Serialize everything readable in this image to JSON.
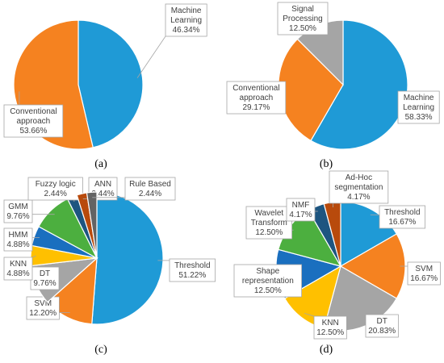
{
  "chart_data": [
    {
      "type": "pie",
      "caption": "(a)",
      "slices": [
        {
          "label": "Machine Learning",
          "label_lines": [
            "Machine",
            "Learning"
          ],
          "value": 46.34,
          "value_text": "46.34%",
          "color": "#1f9ad6"
        },
        {
          "label": "Conventional approach",
          "label_lines": [
            "Conventional",
            "approach"
          ],
          "value": 53.66,
          "value_text": "53.66%",
          "color": "#f58220"
        }
      ]
    },
    {
      "type": "pie",
      "caption": "(b)",
      "slices": [
        {
          "label": "Machine Learning",
          "label_lines": [
            "Machine",
            "Learning"
          ],
          "value": 58.33,
          "value_text": "58.33%",
          "color": "#1f9ad6"
        },
        {
          "label": "Conventional approach",
          "label_lines": [
            "Conventional",
            "approach"
          ],
          "value": 29.17,
          "value_text": "29.17%",
          "color": "#f58220"
        },
        {
          "label": "Signal Processing",
          "label_lines": [
            "Signal",
            "Processing"
          ],
          "value": 12.5,
          "value_text": "12.50%",
          "color": "#a5a5a5"
        }
      ]
    },
    {
      "type": "pie",
      "caption": "(c)",
      "slices": [
        {
          "label": "Threshold",
          "label_lines": [
            "Threshold"
          ],
          "value": 51.22,
          "value_text": "51.22%",
          "color": "#1f9ad6"
        },
        {
          "label": "SVM",
          "label_lines": [
            "SVM"
          ],
          "value": 12.2,
          "value_text": "12.20%",
          "color": "#f58220"
        },
        {
          "label": "DT",
          "label_lines": [
            "DT"
          ],
          "value": 9.76,
          "value_text": "9.76%",
          "color": "#a5a5a5"
        },
        {
          "label": "KNN",
          "label_lines": [
            "KNN"
          ],
          "value": 4.88,
          "value_text": "4.88%",
          "color": "#ffc000"
        },
        {
          "label": "HMM",
          "label_lines": [
            "HMM"
          ],
          "value": 4.88,
          "value_text": "4.88%",
          "color": "#1a6fbf"
        },
        {
          "label": "GMM",
          "label_lines": [
            "GMM"
          ],
          "value": 9.76,
          "value_text": "9.76%",
          "color": "#4caf3f"
        },
        {
          "label": "Fuzzy logic",
          "label_lines": [
            "Fuzzy logic"
          ],
          "value": 2.44,
          "value_text": "2.44%",
          "color": "#1d5580"
        },
        {
          "label": "ANN",
          "label_lines": [
            "ANN"
          ],
          "value": 2.44,
          "value_text": "2.44%",
          "color": "#b84a0c"
        },
        {
          "label": "Rule Based",
          "label_lines": [
            "Rule Based"
          ],
          "value": 2.44,
          "value_text": "2.44%",
          "color": "#636363"
        }
      ]
    },
    {
      "type": "pie",
      "caption": "(d)",
      "slices": [
        {
          "label": "Threshold",
          "label_lines": [
            "Threshold"
          ],
          "value": 16.67,
          "value_text": "16.67%",
          "color": "#1f9ad6"
        },
        {
          "label": "SVM",
          "label_lines": [
            "SVM"
          ],
          "value": 16.67,
          "value_text": "16.67%",
          "color": "#f58220"
        },
        {
          "label": "DT",
          "label_lines": [
            "DT"
          ],
          "value": 20.83,
          "value_text": "20.83%",
          "color": "#a5a5a5"
        },
        {
          "label": "KNN",
          "label_lines": [
            "KNN"
          ],
          "value": 12.5,
          "value_text": "12.50%",
          "color": "#ffc000"
        },
        {
          "label": "Shape representation",
          "label_lines": [
            "Shape",
            "representation"
          ],
          "value": 12.5,
          "value_text": "12.50%",
          "color": "#1a6fbf"
        },
        {
          "label": "Wavelet Transform",
          "label_lines": [
            "Wavelet",
            "Transform"
          ],
          "value": 12.5,
          "value_text": "12.50%",
          "color": "#4caf3f"
        },
        {
          "label": "NMF",
          "label_lines": [
            "NMF"
          ],
          "value": 4.17,
          "value_text": "4.17%",
          "color": "#1d5580"
        },
        {
          "label": "Ad-Hoc segmentation",
          "label_lines": [
            "Ad-Hoc",
            "segmentation"
          ],
          "value": 4.17,
          "value_text": "4.17%",
          "color": "#b84a0c"
        }
      ]
    }
  ]
}
